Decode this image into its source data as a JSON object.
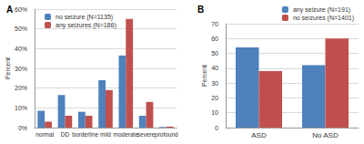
{
  "chart_data": [
    {
      "type": "bar",
      "title": "A",
      "y_label": "Percent",
      "categories": [
        "normal",
        "DD",
        "borderline",
        "mild",
        "moderate",
        "severe",
        "profound"
      ],
      "series": [
        {
          "name": "no seizure (N=1135)",
          "color": "#4f81bd",
          "values": [
            8.5,
            16.5,
            8,
            24,
            36.5,
            6,
            0.3
          ]
        },
        {
          "name": "any seizures (N=186)",
          "color": "#c0504d",
          "values": [
            3,
            6,
            6,
            19,
            55,
            13,
            0.5
          ]
        }
      ],
      "ylim": [
        0,
        60
      ],
      "yticks": [
        {
          "value": 0,
          "label": "0%"
        },
        {
          "value": 10,
          "label": "10%"
        },
        {
          "value": 20,
          "label": "20%"
        },
        {
          "value": 30,
          "label": "30%"
        },
        {
          "value": 40,
          "label": "40%"
        },
        {
          "value": 50,
          "label": "50%"
        },
        {
          "value": 60,
          "label": "60%"
        }
      ],
      "grid": true,
      "legend": "top-left"
    },
    {
      "type": "bar",
      "title": "B",
      "y_label": "Percent",
      "categories": [
        "ASD",
        "No ASD"
      ],
      "series": [
        {
          "name": "any seizure (N=191)",
          "color": "#4f81bd",
          "values": [
            54,
            42
          ]
        },
        {
          "name": "no seizures (N=1401)",
          "color": "#c0504d",
          "values": [
            38,
            60
          ]
        }
      ],
      "ylim": [
        0,
        70
      ],
      "yticks": [
        0,
        10,
        20,
        30,
        40,
        50,
        60,
        70
      ],
      "grid": true,
      "legend": "top-right"
    }
  ]
}
